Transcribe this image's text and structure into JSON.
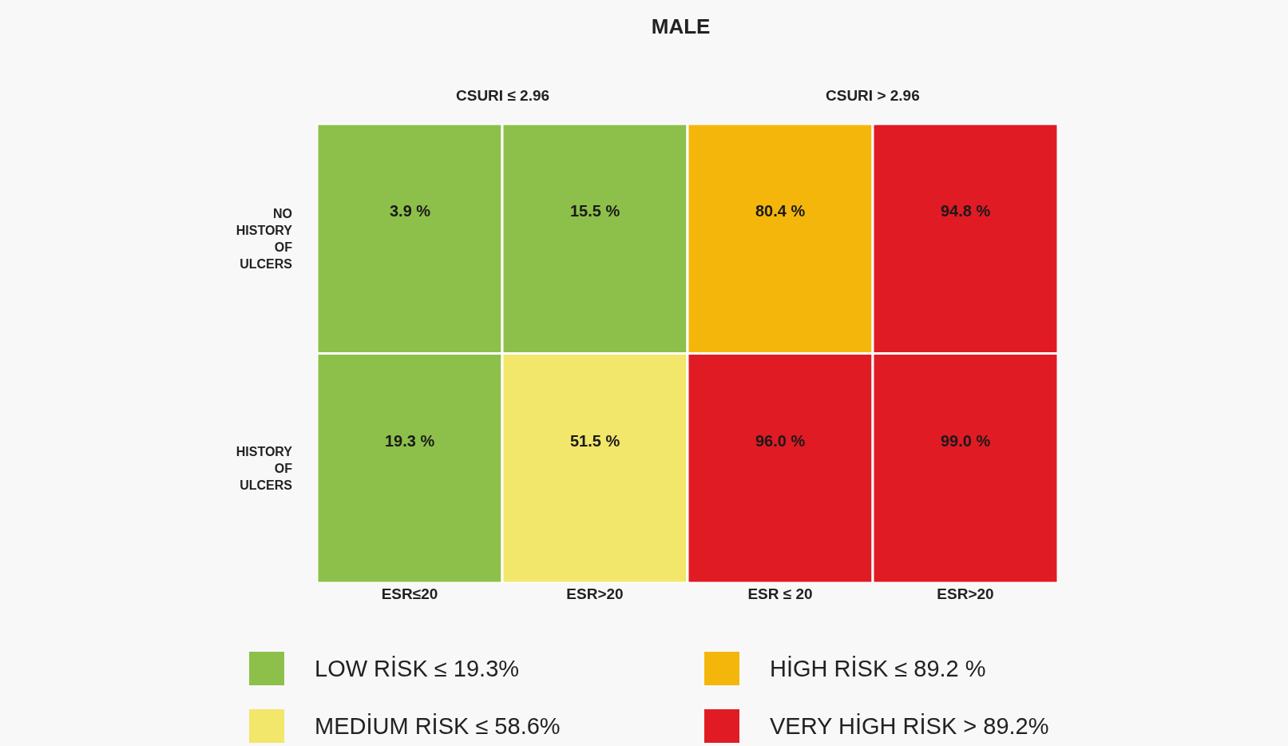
{
  "chart_data": {
    "type": "heatmap",
    "title": "MALE",
    "categories": [
      "ESR≤20",
      "ESR>20",
      "ESR ≤ 20",
      "ESR>20"
    ],
    "y_categories": [
      "NO HISTORY OF ULCERS",
      "HISTORY OF ULCERS"
    ],
    "cells": [
      [
        3.9,
        15.5,
        80.4,
        94.8
      ],
      [
        19.3,
        51.5,
        96.0,
        99.0
      ]
    ],
    "cell_labels": [
      [
        "3.9 %",
        "15.5 %",
        "80.4 %",
        "94.8 %"
      ],
      [
        "19.3 %",
        "51.5 %",
        "96.0 %",
        "99.0 %"
      ]
    ],
    "colors": [
      [
        "#8dc04a",
        "#8dc04a",
        "#f5b60c",
        "#e01b24"
      ],
      [
        "#8dc04a",
        "#f2e66b",
        "#e01b24",
        "#e01b24"
      ]
    ],
    "annotations": [
      "CSURI ≤ 2.96",
      "CSURI > 2.96",
      "LOW RİSK ≤ 19.3%",
      "MEDİUM RİSK ≤ 58.6%",
      "HİGH RİSK ≤ 89.2 %",
      "VERY HİGH RİSK > 89.2%"
    ]
  }
}
